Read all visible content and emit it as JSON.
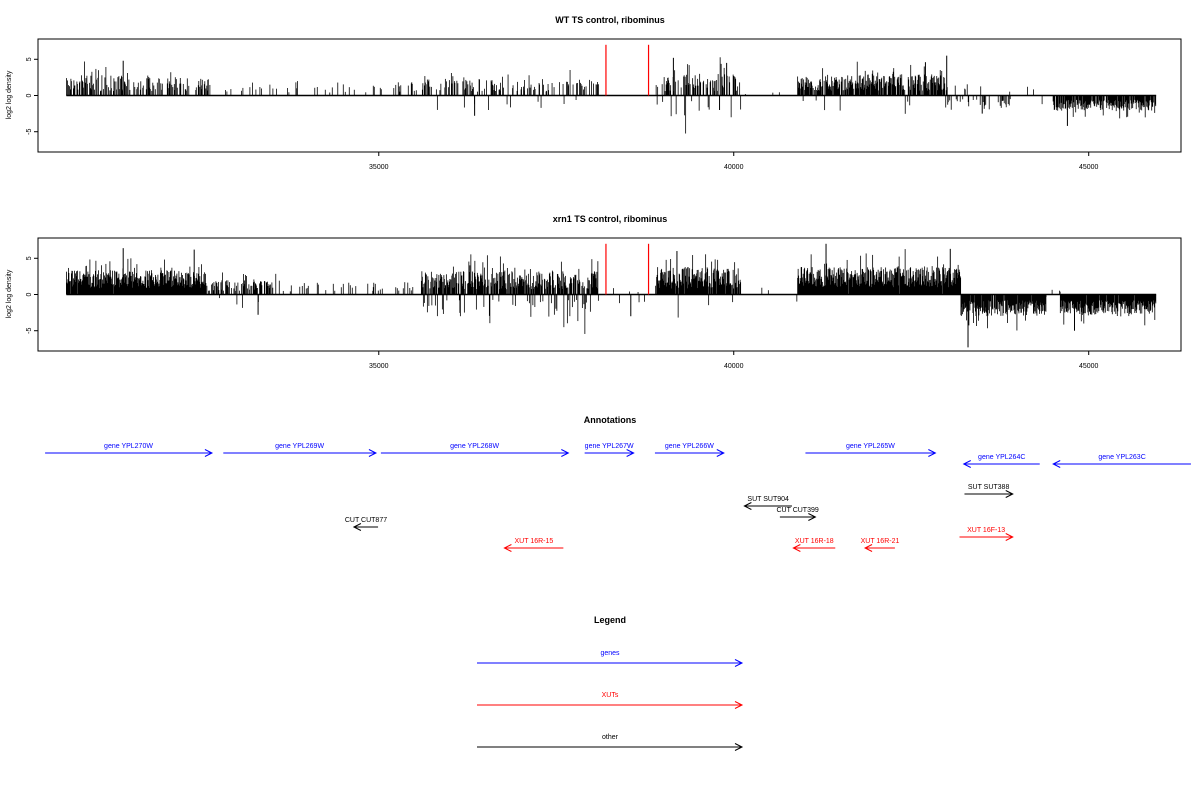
{
  "colors": {
    "gene": "#0000ff",
    "xut": "#ff0000",
    "other": "#000000",
    "marker": "#ff0000",
    "axis": "#000000"
  },
  "chart_data": [
    {
      "type": "bar",
      "title": "WT TS control, ribominus",
      "ylabel": "log2 log density",
      "xlim": [
        30200,
        46300
      ],
      "ylim": [
        -7.8,
        7.8
      ],
      "x_ticks": [
        35000,
        40000,
        45000
      ],
      "y_ticks": [
        -5,
        0,
        5
      ],
      "markers_x": [
        38200,
        38800
      ],
      "marker_height": 7,
      "coverage_x_range": [
        30600,
        45950
      ],
      "segments": [
        {
          "x0": 30600,
          "x1": 31500,
          "density": 0.55,
          "mean": 1.5,
          "amp": 2.2,
          "neg": 0.0
        },
        {
          "x0": 31500,
          "x1": 32600,
          "density": 0.5,
          "mean": 1.4,
          "amp": 2.0,
          "neg": 0.0
        },
        {
          "x0": 32600,
          "x1": 34000,
          "density": 0.1,
          "mean": 1.0,
          "amp": 1.5,
          "neg": 0.0
        },
        {
          "x0": 34000,
          "x1": 35600,
          "density": 0.12,
          "mean": 1.0,
          "amp": 1.5,
          "neg": 0.0
        },
        {
          "x0": 35600,
          "x1": 36300,
          "density": 0.4,
          "mean": 1.3,
          "amp": 1.8,
          "neg": 0.08
        },
        {
          "x0": 36300,
          "x1": 37800,
          "density": 0.35,
          "mean": 1.2,
          "amp": 1.8,
          "neg": 0.15
        },
        {
          "x0": 37800,
          "x1": 38100,
          "density": 0.3,
          "mean": 1.5,
          "amp": 2.0,
          "neg": 0.0
        },
        {
          "x0": 38900,
          "x1": 40100,
          "density": 0.5,
          "mean": 1.5,
          "amp": 2.5,
          "neg": 0.1
        },
        {
          "x0": 40100,
          "x1": 40900,
          "density": 0.02,
          "mean": 0.5,
          "amp": 0.5,
          "neg": 0.0
        },
        {
          "x0": 40900,
          "x1": 41500,
          "density": 0.8,
          "mean": 1.6,
          "amp": 2.0,
          "neg": 0.05
        },
        {
          "x0": 41500,
          "x1": 43000,
          "density": 0.8,
          "mean": 1.6,
          "amp": 2.3,
          "neg": 0.05
        },
        {
          "x0": 43000,
          "x1": 43900,
          "density": 0.2,
          "mean": 1.2,
          "amp": 1.5,
          "neg": 0.85
        },
        {
          "x0": 43900,
          "x1": 44500,
          "density": 0.08,
          "mean": 1.0,
          "amp": 1.0,
          "neg": 0.9
        },
        {
          "x0": 44500,
          "x1": 45950,
          "density": 0.85,
          "mean": 1.5,
          "amp": 1.5,
          "neg": 1.0
        }
      ],
      "peaks": [
        {
          "x": 31400,
          "y": 4.8
        },
        {
          "x": 36350,
          "y": -2.8
        },
        {
          "x": 39150,
          "y": 5.2
        },
        {
          "x": 39900,
          "y": 4.5
        },
        {
          "x": 42700,
          "y": 4.6
        },
        {
          "x": 43000,
          "y": 5.5
        },
        {
          "x": 43500,
          "y": -2.5
        },
        {
          "x": 44700,
          "y": -4.2
        },
        {
          "x": 39800,
          "y": -2.0
        }
      ],
      "seed": 17
    },
    {
      "type": "bar",
      "title": "xrn1 TS control, ribominus",
      "ylabel": "log2 log density",
      "xlim": [
        30200,
        46300
      ],
      "ylim": [
        -7.8,
        7.8
      ],
      "x_ticks": [
        35000,
        40000,
        45000
      ],
      "y_ticks": [
        -5,
        0,
        5
      ],
      "markers_x": [
        38200,
        38800
      ],
      "marker_height": 7,
      "coverage_x_range": [
        30600,
        45950
      ],
      "segments": [
        {
          "x0": 30600,
          "x1": 32600,
          "density": 0.95,
          "mean": 2.2,
          "amp": 2.5,
          "neg": 0.0
        },
        {
          "x0": 32600,
          "x1": 33500,
          "density": 0.55,
          "mean": 1.2,
          "amp": 1.5,
          "neg": 0.05
        },
        {
          "x0": 33500,
          "x1": 35600,
          "density": 0.15,
          "mean": 1.0,
          "amp": 1.5,
          "neg": 0.05
        },
        {
          "x0": 35600,
          "x1": 38100,
          "density": 0.9,
          "mean": 1.8,
          "amp": 2.5,
          "neg": 0.15
        },
        {
          "x0": 38300,
          "x1": 38750,
          "density": 0.15,
          "mean": 0.8,
          "amp": 1.0,
          "neg": 0.6
        },
        {
          "x0": 38900,
          "x1": 40100,
          "density": 0.95,
          "mean": 2.0,
          "amp": 3.0,
          "neg": 0.05
        },
        {
          "x0": 40100,
          "x1": 40900,
          "density": 0.05,
          "mean": 0.6,
          "amp": 0.8,
          "neg": 0.5
        },
        {
          "x0": 40900,
          "x1": 43200,
          "density": 0.98,
          "mean": 2.5,
          "amp": 2.8,
          "neg": 0.0
        },
        {
          "x0": 43200,
          "x1": 44400,
          "density": 0.95,
          "mean": 2.0,
          "amp": 2.2,
          "neg": 1.0
        },
        {
          "x0": 44400,
          "x1": 44600,
          "density": 0.2,
          "mean": 0.5,
          "amp": 0.5,
          "neg": 0.3
        },
        {
          "x0": 44600,
          "x1": 45950,
          "density": 0.95,
          "mean": 2.0,
          "amp": 2.0,
          "neg": 1.0
        }
      ],
      "peaks": [
        {
          "x": 31400,
          "y": 6.4
        },
        {
          "x": 32400,
          "y": 6.2
        },
        {
          "x": 33300,
          "y": -2.8
        },
        {
          "x": 39200,
          "y": 6.0
        },
        {
          "x": 41300,
          "y": 7.0
        },
        {
          "x": 43050,
          "y": 6.3
        },
        {
          "x": 43300,
          "y": -7.3
        },
        {
          "x": 44800,
          "y": -5.0
        },
        {
          "x": 38550,
          "y": -3.0
        }
      ],
      "seed": 29
    }
  ],
  "annotations": {
    "title": "Annotations",
    "xlim": [
      30200,
      46300
    ],
    "items": [
      {
        "label": "gene YPL270W",
        "kind": "gene",
        "x0": 30300,
        "x1": 32650,
        "dir": "right",
        "row": 0
      },
      {
        "label": "gene YPL269W",
        "kind": "gene",
        "x0": 32810,
        "x1": 34960,
        "dir": "right",
        "row": 0
      },
      {
        "label": "gene YPL268W",
        "kind": "gene",
        "x0": 35030,
        "x1": 37670,
        "dir": "right",
        "row": 0
      },
      {
        "label": "gene YPL267W",
        "kind": "gene",
        "x0": 37900,
        "x1": 38590,
        "dir": "right",
        "row": 0
      },
      {
        "label": "gene YPL266W",
        "kind": "gene",
        "x0": 38890,
        "x1": 39860,
        "dir": "right",
        "row": 0
      },
      {
        "label": "gene YPL265W",
        "kind": "gene",
        "x0": 41010,
        "x1": 42840,
        "dir": "right",
        "row": 0
      },
      {
        "label": "gene YPL264C",
        "kind": "gene",
        "x0": 43240,
        "x1": 44310,
        "dir": "left",
        "row": 1
      },
      {
        "label": "gene YPL263C",
        "kind": "gene",
        "x0": 44500,
        "x1": 46440,
        "dir": "left",
        "row": 1
      },
      {
        "label": "SUT SUT388",
        "kind": "other",
        "x0": 43250,
        "x1": 43930,
        "dir": "right",
        "row": 2
      },
      {
        "label": "SUT SUT904",
        "kind": "other",
        "x0": 40150,
        "x1": 40820,
        "dir": "left",
        "row": 3
      },
      {
        "label": "CUT CUT399",
        "kind": "other",
        "x0": 40650,
        "x1": 41150,
        "dir": "right",
        "row": 4
      },
      {
        "label": "CUT CUT877",
        "kind": "other",
        "x0": 34650,
        "x1": 34990,
        "dir": "left",
        "row": 5
      },
      {
        "label": "XUT 16F-13",
        "kind": "xut",
        "x0": 43180,
        "x1": 43930,
        "dir": "right",
        "row": 6
      },
      {
        "label": "XUT 16R-15",
        "kind": "xut",
        "x0": 36770,
        "x1": 37600,
        "dir": "left",
        "row": 7
      },
      {
        "label": "XUT 16R-18",
        "kind": "xut",
        "x0": 40840,
        "x1": 41430,
        "dir": "left",
        "row": 7
      },
      {
        "label": "XUT 16R-21",
        "kind": "xut",
        "x0": 41850,
        "x1": 42270,
        "dir": "left",
        "row": 7
      }
    ]
  },
  "legend": {
    "title": "Legend",
    "items": [
      {
        "label": "genes",
        "kind": "gene"
      },
      {
        "label": "XUTs",
        "kind": "xut"
      },
      {
        "label": "other",
        "kind": "other"
      }
    ]
  }
}
